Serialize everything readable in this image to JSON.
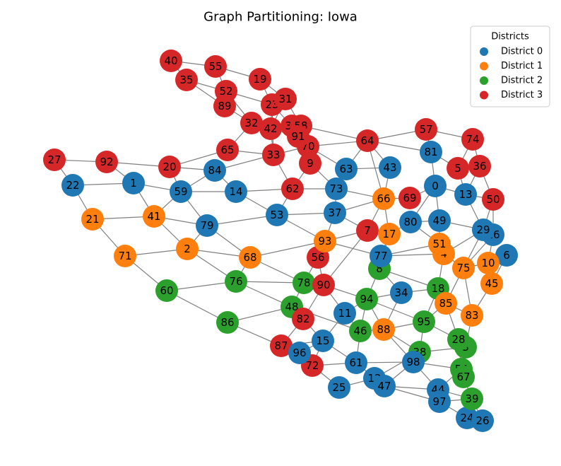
{
  "title": "Graph Partitioning: Iowa",
  "legend": {
    "title": "Districts",
    "placement": "top-right",
    "entries": [
      {
        "label": "District 0",
        "color": "#1f77b4"
      },
      {
        "label": "District 1",
        "color": "#ff7f0e"
      },
      {
        "label": "District 2",
        "color": "#2ca02c"
      },
      {
        "label": "District 3",
        "color": "#d62728"
      }
    ]
  },
  "colors": {
    "edge": "#808080",
    "district_0": "#1f77b4",
    "district_1": "#ff7f0e",
    "district_2": "#2ca02c",
    "district_3": "#d62728"
  },
  "nodes": [
    {
      "id": "0",
      "district": 0
    },
    {
      "id": "1",
      "district": 0
    },
    {
      "id": "2",
      "district": 1
    },
    {
      "id": "3",
      "district": 2
    },
    {
      "id": "4",
      "district": 1
    },
    {
      "id": "5",
      "district": 3
    },
    {
      "id": "6",
      "district": 0
    },
    {
      "id": "7",
      "district": 3
    },
    {
      "id": "8",
      "district": 2
    },
    {
      "id": "9",
      "district": 3
    },
    {
      "id": "10",
      "district": 1
    },
    {
      "id": "11",
      "district": 0
    },
    {
      "id": "12",
      "district": 0
    },
    {
      "id": "13",
      "district": 0
    },
    {
      "id": "14",
      "district": 0
    },
    {
      "id": "15",
      "district": 0
    },
    {
      "id": "16",
      "district": 0
    },
    {
      "id": "17",
      "district": 1
    },
    {
      "id": "18",
      "district": 2
    },
    {
      "id": "19",
      "district": 3
    },
    {
      "id": "20",
      "district": 3
    },
    {
      "id": "21",
      "district": 1
    },
    {
      "id": "22",
      "district": 0
    },
    {
      "id": "23",
      "district": 3
    },
    {
      "id": "24",
      "district": 0
    },
    {
      "id": "25",
      "district": 0
    },
    {
      "id": "26",
      "district": 0
    },
    {
      "id": "27",
      "district": 3
    },
    {
      "id": "28",
      "district": 2
    },
    {
      "id": "29",
      "district": 0
    },
    {
      "id": "30",
      "district": 3
    },
    {
      "id": "31",
      "district": 3
    },
    {
      "id": "32",
      "district": 3
    },
    {
      "id": "33",
      "district": 3
    },
    {
      "id": "34",
      "district": 0
    },
    {
      "id": "35",
      "district": 3
    },
    {
      "id": "36",
      "district": 3
    },
    {
      "id": "37",
      "district": 0
    },
    {
      "id": "38",
      "district": 2
    },
    {
      "id": "39",
      "district": 2
    },
    {
      "id": "40",
      "district": 3
    },
    {
      "id": "41",
      "district": 1
    },
    {
      "id": "42",
      "district": 3
    },
    {
      "id": "43",
      "district": 0
    },
    {
      "id": "44",
      "district": 0
    },
    {
      "id": "45",
      "district": 1
    },
    {
      "id": "46",
      "district": 2
    },
    {
      "id": "47",
      "district": 0
    },
    {
      "id": "48",
      "district": 2
    },
    {
      "id": "49",
      "district": 0
    },
    {
      "id": "50",
      "district": 3
    },
    {
      "id": "51",
      "district": 1
    },
    {
      "id": "52",
      "district": 3
    },
    {
      "id": "53",
      "district": 0
    },
    {
      "id": "54",
      "district": 2
    },
    {
      "id": "55",
      "district": 3
    },
    {
      "id": "56",
      "district": 3
    },
    {
      "id": "57",
      "district": 3
    },
    {
      "id": "58",
      "district": 3
    },
    {
      "id": "59",
      "district": 0
    },
    {
      "id": "60",
      "district": 2
    },
    {
      "id": "61",
      "district": 0
    },
    {
      "id": "62",
      "district": 3
    },
    {
      "id": "63",
      "district": 0
    },
    {
      "id": "64",
      "district": 3
    },
    {
      "id": "65",
      "district": 3
    },
    {
      "id": "66",
      "district": 1
    },
    {
      "id": "67",
      "district": 2
    },
    {
      "id": "68",
      "district": 1
    },
    {
      "id": "69",
      "district": 3
    },
    {
      "id": "70",
      "district": 3
    },
    {
      "id": "71",
      "district": 1
    },
    {
      "id": "72",
      "district": 3
    },
    {
      "id": "73",
      "district": 0
    },
    {
      "id": "74",
      "district": 3
    },
    {
      "id": "75",
      "district": 1
    },
    {
      "id": "76",
      "district": 2
    },
    {
      "id": "77",
      "district": 0
    },
    {
      "id": "78",
      "district": 2
    },
    {
      "id": "79",
      "district": 0
    },
    {
      "id": "80",
      "district": 0
    },
    {
      "id": "81",
      "district": 0
    },
    {
      "id": "82",
      "district": 3
    },
    {
      "id": "83",
      "district": 1
    },
    {
      "id": "84",
      "district": 0
    },
    {
      "id": "85",
      "district": 1
    },
    {
      "id": "86",
      "district": 2
    },
    {
      "id": "87",
      "district": 3
    },
    {
      "id": "88",
      "district": 1
    },
    {
      "id": "89",
      "district": 3
    },
    {
      "id": "90",
      "district": 3
    },
    {
      "id": "91",
      "district": 3
    },
    {
      "id": "92",
      "district": 3
    },
    {
      "id": "93",
      "district": 1
    },
    {
      "id": "94",
      "district": 2
    },
    {
      "id": "95",
      "district": 2
    },
    {
      "id": "96",
      "district": 0
    },
    {
      "id": "97",
      "district": 0
    },
    {
      "id": "98",
      "district": 0
    }
  ],
  "edges": [
    [
      "27",
      "22"
    ],
    [
      "27",
      "92"
    ],
    [
      "22",
      "21"
    ],
    [
      "22",
      "1"
    ],
    [
      "92",
      "1"
    ],
    [
      "92",
      "20"
    ],
    [
      "1",
      "59"
    ],
    [
      "1",
      "41"
    ],
    [
      "20",
      "59"
    ],
    [
      "20",
      "65"
    ],
    [
      "20",
      "84"
    ],
    [
      "21",
      "41"
    ],
    [
      "21",
      "71"
    ],
    [
      "41",
      "59"
    ],
    [
      "41",
      "2"
    ],
    [
      "41",
      "79"
    ],
    [
      "71",
      "2"
    ],
    [
      "71",
      "60"
    ],
    [
      "2",
      "79"
    ],
    [
      "2",
      "68"
    ],
    [
      "2",
      "76"
    ],
    [
      "60",
      "76"
    ],
    [
      "60",
      "86"
    ],
    [
      "79",
      "59"
    ],
    [
      "79",
      "53"
    ],
    [
      "79",
      "68"
    ],
    [
      "59",
      "14"
    ],
    [
      "59",
      "84"
    ],
    [
      "84",
      "14"
    ],
    [
      "84",
      "33"
    ],
    [
      "65",
      "33"
    ],
    [
      "65",
      "32"
    ],
    [
      "14",
      "62"
    ],
    [
      "14",
      "53"
    ],
    [
      "53",
      "62"
    ],
    [
      "53",
      "37"
    ],
    [
      "53",
      "93"
    ],
    [
      "62",
      "33"
    ],
    [
      "62",
      "9"
    ],
    [
      "62",
      "73"
    ],
    [
      "33",
      "42"
    ],
    [
      "33",
      "70"
    ],
    [
      "33",
      "23"
    ],
    [
      "9",
      "70"
    ],
    [
      "9",
      "73"
    ],
    [
      "9",
      "91"
    ],
    [
      "73",
      "63"
    ],
    [
      "73",
      "37"
    ],
    [
      "73",
      "66"
    ],
    [
      "37",
      "93"
    ],
    [
      "37",
      "66"
    ],
    [
      "37",
      "7"
    ],
    [
      "93",
      "68"
    ],
    [
      "93",
      "56"
    ],
    [
      "93",
      "7"
    ],
    [
      "93",
      "77"
    ],
    [
      "68",
      "76"
    ],
    [
      "68",
      "78"
    ],
    [
      "76",
      "78"
    ],
    [
      "76",
      "48"
    ],
    [
      "86",
      "48"
    ],
    [
      "86",
      "87"
    ],
    [
      "78",
      "90"
    ],
    [
      "78",
      "48"
    ],
    [
      "90",
      "56"
    ],
    [
      "90",
      "82"
    ],
    [
      "90",
      "94"
    ],
    [
      "90",
      "11"
    ],
    [
      "90",
      "7"
    ],
    [
      "56",
      "78"
    ],
    [
      "48",
      "82"
    ],
    [
      "48",
      "46"
    ],
    [
      "82",
      "87"
    ],
    [
      "82",
      "15"
    ],
    [
      "87",
      "96"
    ],
    [
      "87",
      "15"
    ],
    [
      "96",
      "15"
    ],
    [
      "96",
      "72"
    ],
    [
      "15",
      "72"
    ],
    [
      "15",
      "61"
    ],
    [
      "15",
      "11"
    ],
    [
      "72",
      "25"
    ],
    [
      "72",
      "61"
    ],
    [
      "25",
      "12"
    ],
    [
      "61",
      "12"
    ],
    [
      "61",
      "98"
    ],
    [
      "61",
      "46"
    ],
    [
      "12",
      "47"
    ],
    [
      "12",
      "38"
    ],
    [
      "47",
      "44"
    ],
    [
      "47",
      "97"
    ],
    [
      "47",
      "98"
    ],
    [
      "11",
      "46"
    ],
    [
      "11",
      "94"
    ],
    [
      "46",
      "88"
    ],
    [
      "46",
      "94"
    ],
    [
      "94",
      "8"
    ],
    [
      "94",
      "88"
    ],
    [
      "94",
      "95"
    ],
    [
      "94",
      "34"
    ],
    [
      "88",
      "34"
    ],
    [
      "88",
      "95"
    ],
    [
      "88",
      "98"
    ],
    [
      "88",
      "38"
    ],
    [
      "34",
      "18"
    ],
    [
      "34",
      "8"
    ],
    [
      "8",
      "77"
    ],
    [
      "8",
      "18"
    ],
    [
      "8",
      "17"
    ],
    [
      "77",
      "17"
    ],
    [
      "77",
      "4"
    ],
    [
      "77",
      "51"
    ],
    [
      "17",
      "7"
    ],
    [
      "17",
      "66"
    ],
    [
      "17",
      "80"
    ],
    [
      "7",
      "66"
    ],
    [
      "66",
      "43"
    ],
    [
      "66",
      "69"
    ],
    [
      "66",
      "64"
    ],
    [
      "43",
      "63"
    ],
    [
      "43",
      "64"
    ],
    [
      "63",
      "70"
    ],
    [
      "63",
      "64"
    ],
    [
      "64",
      "70"
    ],
    [
      "64",
      "57"
    ],
    [
      "64",
      "81"
    ],
    [
      "57",
      "81"
    ],
    [
      "57",
      "74"
    ],
    [
      "81",
      "0"
    ],
    [
      "81",
      "5"
    ],
    [
      "74",
      "5"
    ],
    [
      "74",
      "36"
    ],
    [
      "5",
      "36"
    ],
    [
      "5",
      "13"
    ],
    [
      "36",
      "13"
    ],
    [
      "36",
      "50"
    ],
    [
      "0",
      "13"
    ],
    [
      "0",
      "80"
    ],
    [
      "0",
      "49"
    ],
    [
      "0",
      "69"
    ],
    [
      "13",
      "29"
    ],
    [
      "13",
      "50"
    ],
    [
      "50",
      "29"
    ],
    [
      "50",
      "16"
    ],
    [
      "29",
      "16"
    ],
    [
      "29",
      "49"
    ],
    [
      "29",
      "4"
    ],
    [
      "29",
      "75"
    ],
    [
      "16",
      "75"
    ],
    [
      "16",
      "10"
    ],
    [
      "6",
      "10"
    ],
    [
      "6",
      "45"
    ],
    [
      "49",
      "80"
    ],
    [
      "49",
      "51"
    ],
    [
      "51",
      "4"
    ],
    [
      "51",
      "80"
    ],
    [
      "4",
      "75"
    ],
    [
      "4",
      "18"
    ],
    [
      "75",
      "10"
    ],
    [
      "75",
      "85"
    ],
    [
      "75",
      "83"
    ],
    [
      "10",
      "45"
    ],
    [
      "45",
      "83"
    ],
    [
      "18",
      "85"
    ],
    [
      "18",
      "95"
    ],
    [
      "85",
      "83"
    ],
    [
      "85",
      "95"
    ],
    [
      "85",
      "28"
    ],
    [
      "83",
      "3"
    ],
    [
      "95",
      "28"
    ],
    [
      "95",
      "38"
    ],
    [
      "28",
      "3"
    ],
    [
      "28",
      "54"
    ],
    [
      "3",
      "38"
    ],
    [
      "3",
      "67"
    ],
    [
      "38",
      "98"
    ],
    [
      "98",
      "54"
    ],
    [
      "98",
      "44"
    ],
    [
      "54",
      "67"
    ],
    [
      "54",
      "44"
    ],
    [
      "67",
      "39"
    ],
    [
      "44",
      "39"
    ],
    [
      "44",
      "97"
    ],
    [
      "97",
      "24"
    ],
    [
      "97",
      "39"
    ],
    [
      "24",
      "26"
    ],
    [
      "39",
      "26"
    ],
    [
      "40",
      "35"
    ],
    [
      "40",
      "55"
    ],
    [
      "55",
      "52"
    ],
    [
      "55",
      "19"
    ],
    [
      "35",
      "52"
    ],
    [
      "35",
      "89"
    ],
    [
      "52",
      "32"
    ],
    [
      "52",
      "23"
    ],
    [
      "89",
      "32"
    ],
    [
      "19",
      "23"
    ],
    [
      "19",
      "31"
    ],
    [
      "23",
      "31"
    ],
    [
      "23",
      "42"
    ],
    [
      "23",
      "30"
    ],
    [
      "31",
      "58"
    ],
    [
      "31",
      "42"
    ],
    [
      "32",
      "42"
    ],
    [
      "42",
      "30"
    ],
    [
      "42",
      "91"
    ],
    [
      "30",
      "58"
    ],
    [
      "30",
      "91"
    ],
    [
      "58",
      "70"
    ],
    [
      "58",
      "64"
    ],
    [
      "91",
      "70"
    ]
  ]
}
